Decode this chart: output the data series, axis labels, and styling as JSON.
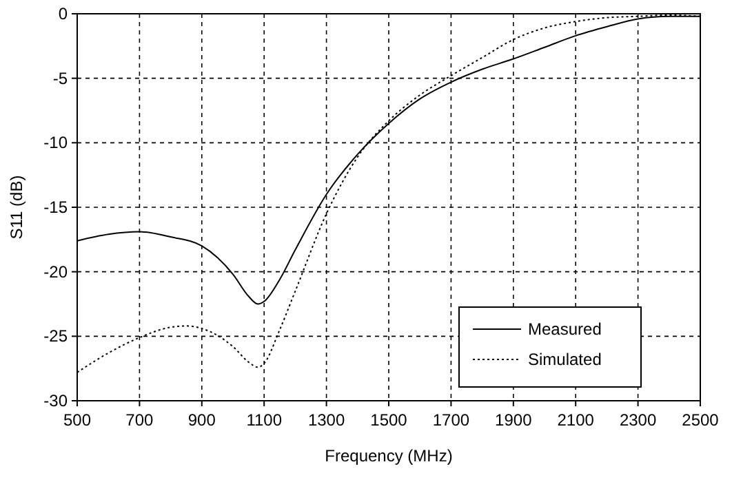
{
  "chart_data": {
    "type": "line",
    "xlabel": "Frequency  (MHz)",
    "ylabel": "S11  (dB)",
    "xlim": [
      500,
      2500
    ],
    "xticks": [
      500,
      700,
      900,
      1100,
      1300,
      1500,
      1700,
      1900,
      2100,
      2300,
      2500
    ],
    "ylim": [
      -30,
      0
    ],
    "yticks": [
      -30,
      -25,
      -20,
      -15,
      -10,
      -5,
      0
    ],
    "grid": true,
    "legend": "bottom right",
    "series": [
      {
        "name": "Measured",
        "color": "#000000",
        "line_style": "solid",
        "x": [
          500,
          600,
          700,
          800,
          900,
          1000,
          1050,
          1080,
          1100,
          1150,
          1200,
          1300,
          1400,
          1500,
          1600,
          1700,
          1800,
          1900,
          2000,
          2100,
          2200,
          2300,
          2400,
          2500
        ],
        "values": [
          -17.6,
          -17.1,
          -16.9,
          -17.3,
          -18.0,
          -20.2,
          -21.9,
          -22.5,
          -22.3,
          -20.6,
          -18.3,
          -14.0,
          -10.9,
          -8.5,
          -6.6,
          -5.3,
          -4.3,
          -3.5,
          -2.6,
          -1.7,
          -1.0,
          -0.4,
          -0.2,
          -0.2
        ]
      },
      {
        "name": "Simulated",
        "color": "#000000",
        "line_style": "dotted",
        "x": [
          500,
          600,
          700,
          800,
          850,
          900,
          1000,
          1050,
          1080,
          1100,
          1150,
          1200,
          1300,
          1400,
          1500,
          1600,
          1700,
          1800,
          1900,
          2000,
          2100,
          2200,
          2300,
          2400,
          2500
        ],
        "values": [
          -27.8,
          -26.3,
          -25.1,
          -24.3,
          -24.2,
          -24.4,
          -25.8,
          -27.0,
          -27.4,
          -27.1,
          -24.5,
          -21.5,
          -15.5,
          -11.1,
          -8.3,
          -6.3,
          -4.8,
          -3.4,
          -2.0,
          -1.1,
          -0.6,
          -0.3,
          -0.2,
          -0.1,
          -0.2
        ]
      }
    ]
  }
}
